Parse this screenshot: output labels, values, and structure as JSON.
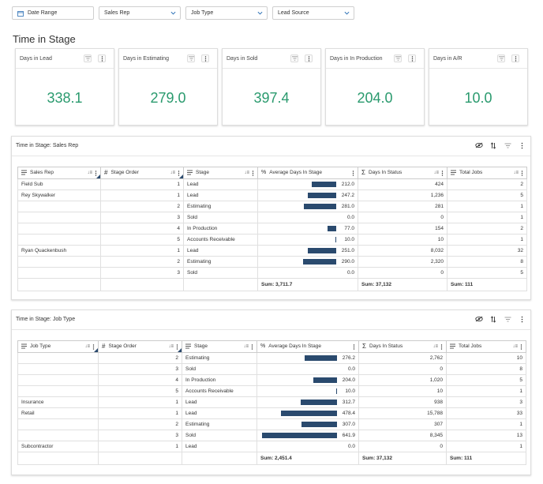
{
  "filters": [
    {
      "label": "Date Range",
      "icon": "calendar-icon"
    },
    {
      "label": "Sales Rep",
      "icon": "chevron-down-icon"
    },
    {
      "label": "Job Type",
      "icon": "chevron-down-icon"
    },
    {
      "label": "Lead Source",
      "icon": "chevron-down-icon"
    }
  ],
  "page_title": "Time in Stage",
  "kpis": [
    {
      "title": "Days in Lead",
      "value": "338.1"
    },
    {
      "title": "Days in Estimating",
      "value": "279.0"
    },
    {
      "title": "Days in Sold",
      "value": "397.4"
    },
    {
      "title": "Days in In Production",
      "value": "204.0"
    },
    {
      "title": "Days in A/R",
      "value": "10.0"
    }
  ],
  "colors": {
    "kpi_value": "#2a9a6e",
    "bar": "#2a4a6e"
  },
  "table1": {
    "title": "Time in Stage: Sales Rep",
    "headers": [
      "Sales Rep",
      "Stage Order",
      "Stage",
      "Average Days In Stage",
      "Days In Status",
      "Total Jobs"
    ],
    "rows": [
      [
        "Field Sub",
        "1",
        "Lead",
        "212.0",
        "424",
        "2"
      ],
      [
        "Rey Skywalker",
        "1",
        "Lead",
        "247.2",
        "1,236",
        "5"
      ],
      [
        "",
        "2",
        "Estimating",
        "281.0",
        "281",
        "1"
      ],
      [
        "",
        "3",
        "Sold",
        "0.0",
        "0",
        "1"
      ],
      [
        "",
        "4",
        "In Production",
        "77.0",
        "154",
        "2"
      ],
      [
        "",
        "5",
        "Accounts Receivable",
        "10.0",
        "10",
        "1"
      ],
      [
        "Ryan Quackenbush",
        "1",
        "Lead",
        "251.0",
        "8,032",
        "32"
      ],
      [
        "",
        "2",
        "Estimating",
        "290.0",
        "2,320",
        "8"
      ],
      [
        "",
        "3",
        "Sold",
        "0.0",
        "0",
        "5"
      ]
    ],
    "sums": {
      "avg": "Sum: 3,711.7",
      "days": "Sum: 37,132",
      "jobs": "Sum: 111"
    }
  },
  "table2": {
    "title": "Time in Stage: Job Type",
    "headers": [
      "Job Type",
      "Stage Order",
      "Stage",
      "Average Days In Stage",
      "Days In Status",
      "Total Jobs"
    ],
    "rows": [
      [
        "",
        "2",
        "Estimating",
        "276.2",
        "2,762",
        "10"
      ],
      [
        "",
        "3",
        "Sold",
        "0.0",
        "0",
        "8"
      ],
      [
        "",
        "4",
        "In Production",
        "204.0",
        "1,020",
        "5"
      ],
      [
        "",
        "5",
        "Accounts Receivable",
        "10.0",
        "10",
        "1"
      ],
      [
        "Insurance",
        "1",
        "Lead",
        "312.7",
        "938",
        "3"
      ],
      [
        "Retail",
        "1",
        "Lead",
        "478.4",
        "15,788",
        "33"
      ],
      [
        "",
        "2",
        "Estimating",
        "307.0",
        "307",
        "1"
      ],
      [
        "",
        "3",
        "Sold",
        "641.9",
        "8,345",
        "13"
      ],
      [
        "Subcontractor",
        "1",
        "Lead",
        "0.0",
        "0",
        "1"
      ]
    ],
    "sums": {
      "avg": "Sum: 2,451.4",
      "days": "Sum: 37,132",
      "jobs": "Sum: 111"
    }
  }
}
